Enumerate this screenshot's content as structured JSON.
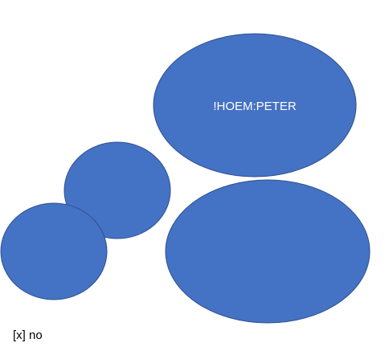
{
  "shapes": {
    "fill_color": "#4472c4",
    "stroke_color": "#2f528f",
    "label_color": "#ffffff",
    "ellipse_top_right": {
      "label": "!HOEM:PETER"
    },
    "ellipse_bottom_right": {
      "label": ""
    },
    "circle_middle_left": {
      "label": ""
    },
    "circle_bottom_left": {
      "label": ""
    }
  },
  "caption": "[x] no"
}
